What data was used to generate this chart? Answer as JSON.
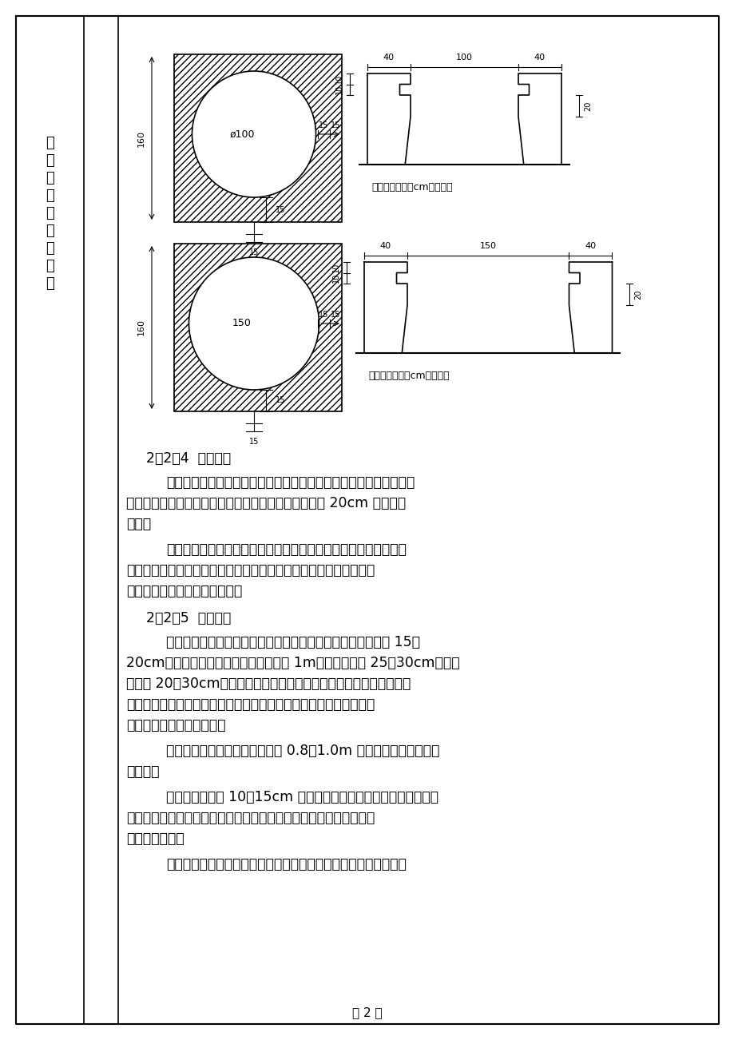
{
  "bg_color": "#ffffff",
  "border_color": "#000000",
  "page_width": 9.2,
  "page_height": 13.02,
  "left_col_text": "施\n工\n程\n序\n及\n操\n作\n要\n点",
  "note_text": "注：本图尺寸以cm为单位。",
  "section_224": "2．2．4  桩孔开挖",
  "para1_lines": [
    "采用从上到下逐层用镐、锹进行开挖，遇坚硬土或大块弧石采用锤、",
    "钎破碎，挖土顺序为先挖中间后挖周边，按设计桩径加 20cm 控制截面",
    "大小。"
  ],
  "para2_lines": [
    "孔内挖出的土采用提升设备垂直运输到地面，堆积到指定地点，防",
    "止污染环境。注意挖孔过程中，不要将孔壁修成光面，要使孔壁稍有",
    "凹凸不平，以增加桩的摩擦力。"
  ],
  "section_225": "2．2．5  护壁施工",
  "para3_lines": [
    "人工挖孔必须施作护壁，护壁可采用混凝土护壁，径向厚度为 15～",
    "20cm，第一节混凝土护壁（原地面以下 1m）径向厚度为 25～30cm，宜高",
    "出地面 20～30cm，使其成为井口围圈，以阻挡井上土石及其它物体滚",
    "入井下伤人，并且便于挡水和定位。护壁施工在地质条件不好的情况",
    "下应采用钢筋混凝土护壁。"
  ],
  "para4_lines": [
    "该方法适用于各类土层，每挖掘 0.8～1.0m 深时，即立模灌注混凝",
    "土护壁。"
  ],
  "para5_lines": [
    "两节护壁之间留 10～15cm 的空隙，以便混凝土的灌注施工。为加",
    "速混凝土的凝结，可掺入速凝剂。模板不需光滑平整，以利于与桩体",
    "混凝土的联结。"
  ],
  "para6_lines": [
    "为了进一步提高柱身砼与护壁的粘结，也为了砼入模方便，护壁方"
  ],
  "page_num": "－ 2 －"
}
